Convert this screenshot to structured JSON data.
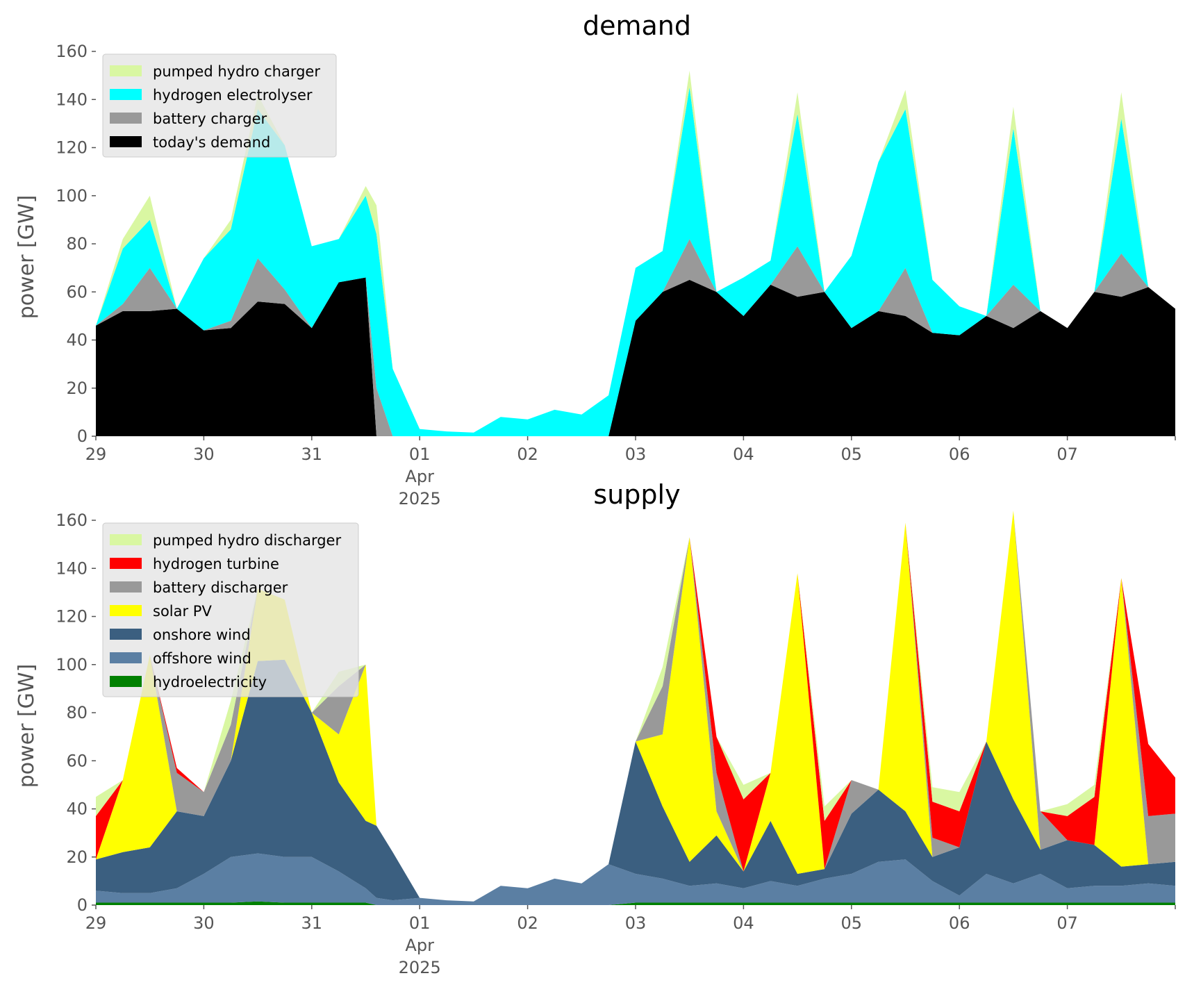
{
  "chart_data": [
    {
      "type": "area",
      "stacked": true,
      "title": "demand",
      "xlabel": "",
      "ylabel": "power [GW]",
      "ylim": [
        0,
        160
      ],
      "yticks": [
        0,
        20,
        40,
        60,
        80,
        100,
        120,
        140,
        160
      ],
      "xlim": [
        0,
        10
      ],
      "x_tick_labels": [
        "29",
        "30",
        "31",
        "01",
        "02",
        "03",
        "04",
        "05",
        "06",
        "07"
      ],
      "x_tick_sublabels": {
        "3": "Apr",
        "3b": "2025"
      },
      "legend_position": "top-left",
      "grid": false,
      "x": [
        0,
        0.25,
        0.5,
        0.75,
        1,
        1.25,
        1.5,
        1.75,
        2,
        2.25,
        2.5,
        2.6,
        2.75,
        3,
        3.25,
        3.5,
        3.75,
        4,
        4.25,
        4.5,
        4.75,
        5,
        5.25,
        5.5,
        5.75,
        6,
        6.25,
        6.5,
        6.75,
        7,
        7.25,
        7.5,
        7.75,
        8,
        8.25,
        8.5,
        8.75,
        9,
        9.25,
        9.5,
        9.75,
        10
      ],
      "series": [
        {
          "name": "today's demand",
          "color": "#000000",
          "values": [
            46,
            52,
            52,
            53,
            44,
            45,
            56,
            55,
            45,
            64,
            66,
            0,
            0,
            0,
            0,
            0,
            0,
            0,
            0,
            0,
            0,
            48,
            60,
            65,
            60,
            50,
            63,
            58,
            60,
            45,
            52,
            50,
            43,
            42,
            50,
            45,
            52,
            45,
            60,
            58,
            62,
            53
          ]
        },
        {
          "name": "battery charger",
          "color": "#999999",
          "values": [
            0,
            3,
            18,
            0,
            0,
            3,
            18,
            6,
            0,
            0,
            0,
            20,
            0,
            0,
            0,
            0,
            0,
            0,
            0,
            0,
            0,
            0,
            0,
            17,
            0,
            0,
            0,
            21,
            0,
            0,
            0,
            20,
            0,
            0,
            0,
            18,
            0,
            0,
            0,
            18,
            0,
            0
          ]
        },
        {
          "name": "hydrogen electrolyser",
          "color": "#00ffff",
          "values": [
            0,
            23,
            20,
            0,
            30,
            38,
            62,
            60,
            34,
            18,
            34,
            64,
            28,
            3,
            2,
            1.5,
            8,
            7,
            11,
            9,
            17,
            22,
            17,
            63,
            0,
            16,
            10,
            55,
            0,
            30,
            62,
            66,
            22,
            12,
            0,
            65,
            0,
            0,
            0,
            56,
            0,
            0
          ]
        },
        {
          "name": "pumped hydro charger",
          "color": "#d9f7a2",
          "values": [
            0,
            4,
            10,
            0,
            0,
            4,
            6,
            0,
            0,
            0,
            4,
            12,
            0,
            0,
            0,
            0,
            0,
            0,
            0,
            0,
            0,
            0,
            0,
            7,
            0,
            0,
            0,
            9,
            0,
            0,
            0,
            8,
            0,
            0,
            0,
            9,
            0,
            0,
            0,
            11,
            0,
            0
          ]
        }
      ]
    },
    {
      "type": "area",
      "stacked": true,
      "title": "supply",
      "xlabel": "",
      "ylabel": "power [GW]",
      "ylim": [
        0,
        160
      ],
      "yticks": [
        0,
        20,
        40,
        60,
        80,
        100,
        120,
        140,
        160
      ],
      "xlim": [
        0,
        10
      ],
      "x_tick_labels": [
        "29",
        "30",
        "31",
        "01",
        "02",
        "03",
        "04",
        "05",
        "06",
        "07"
      ],
      "x_tick_sublabels": {
        "3": "Apr",
        "3b": "2025"
      },
      "legend_position": "top-left",
      "grid": false,
      "x": [
        0,
        0.25,
        0.5,
        0.75,
        1,
        1.25,
        1.5,
        1.75,
        2,
        2.25,
        2.5,
        2.6,
        2.75,
        3,
        3.25,
        3.5,
        3.75,
        4,
        4.25,
        4.5,
        4.75,
        5,
        5.25,
        5.5,
        5.75,
        6,
        6.25,
        6.5,
        6.75,
        7,
        7.25,
        7.5,
        7.75,
        8,
        8.25,
        8.5,
        8.75,
        9,
        9.25,
        9.5,
        9.75,
        10
      ],
      "series": [
        {
          "name": "hydroelectricity",
          "color": "#008000",
          "values": [
            1,
            1,
            1,
            1,
            1,
            1,
            1.5,
            1,
            1,
            1,
            1,
            0,
            0,
            0,
            0,
            0,
            0,
            0,
            0,
            0,
            0,
            1,
            1,
            1,
            1,
            1,
            1,
            1,
            1,
            1,
            1,
            1,
            1,
            1,
            1,
            1,
            1,
            1,
            1,
            1,
            1,
            1
          ]
        },
        {
          "name": "offshore wind",
          "color": "#5b7fa3",
          "values": [
            5,
            4,
            4,
            6,
            12,
            19,
            20,
            19,
            19,
            13,
            6,
            3,
            2,
            3,
            2,
            1.5,
            8,
            7,
            11,
            9,
            17,
            12,
            10,
            7,
            8,
            6,
            9,
            7,
            10,
            12,
            17,
            18,
            9,
            3,
            12,
            8,
            12,
            6,
            7,
            7,
            8,
            7
          ]
        },
        {
          "name": "onshore wind",
          "color": "#3b5f80",
          "values": [
            13,
            17,
            19,
            32,
            24,
            40,
            80,
            82,
            60,
            37,
            28,
            30,
            20,
            0,
            0,
            0,
            0,
            0,
            0,
            0,
            0,
            55,
            30,
            10,
            20,
            7,
            25,
            5,
            4,
            25,
            30,
            20,
            10,
            20,
            55,
            35,
            10,
            20,
            17,
            8,
            8,
            10
          ]
        },
        {
          "name": "solar PV",
          "color": "#ffff00",
          "values": [
            0,
            30,
            80,
            0,
            0,
            0,
            30,
            25,
            0,
            20,
            65,
            0,
            0,
            0,
            0,
            0,
            0,
            0,
            0,
            0,
            0,
            0,
            30,
            135,
            10,
            0,
            20,
            125,
            0,
            0,
            0,
            120,
            0,
            0,
            0,
            120,
            0,
            0,
            0,
            120,
            0,
            0
          ]
        },
        {
          "name": "battery discharger",
          "color": "#999999",
          "values": [
            0,
            0,
            0,
            16,
            10,
            15,
            0,
            0,
            0,
            20,
            0,
            0,
            0,
            0,
            0,
            0,
            0,
            0,
            0,
            0,
            0,
            0,
            20,
            0,
            16,
            0,
            0,
            0,
            0,
            14,
            0,
            0,
            8,
            0,
            0,
            0,
            16,
            0,
            0,
            0,
            20,
            20
          ]
        },
        {
          "name": "hydrogen turbine",
          "color": "#ff0000",
          "values": [
            18,
            0,
            0,
            2,
            0,
            0,
            0,
            0,
            0,
            0,
            0,
            0,
            0,
            0,
            0,
            0,
            0,
            0,
            0,
            0,
            0,
            0,
            0,
            0,
            15,
            30,
            0,
            0,
            20,
            0,
            0,
            0,
            15,
            15,
            0,
            0,
            0,
            10,
            20,
            0,
            30,
            15
          ]
        },
        {
          "name": "pumped hydro discharger",
          "color": "#d9f7a2",
          "values": [
            8,
            0,
            0,
            0,
            0,
            10,
            0,
            0,
            0,
            6,
            0,
            0,
            0,
            0,
            0,
            0,
            0,
            0,
            0,
            0,
            0,
            0,
            8,
            0,
            0,
            6,
            0,
            0,
            6,
            0,
            0,
            0,
            6,
            8,
            0,
            0,
            0,
            5,
            5,
            0,
            0,
            0
          ]
        }
      ]
    }
  ]
}
